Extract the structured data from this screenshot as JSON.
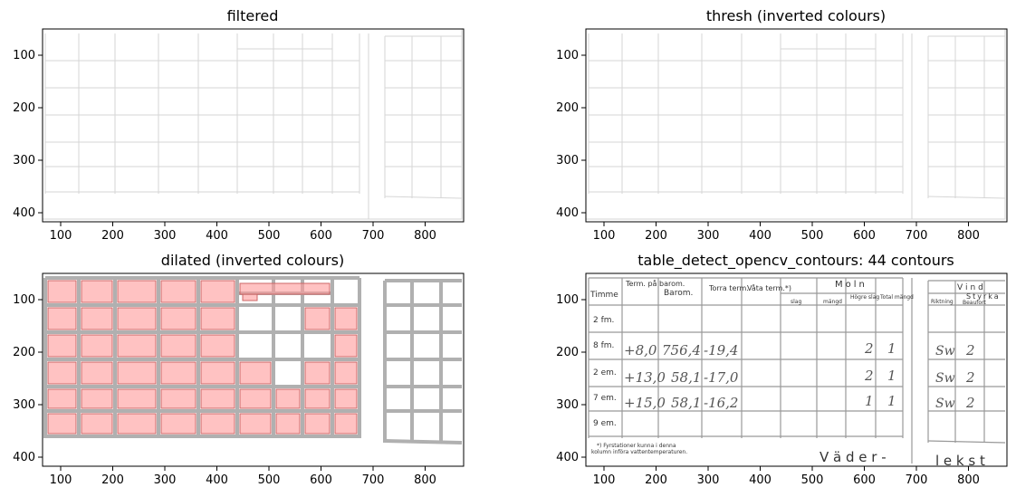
{
  "panels": [
    {
      "id": "filtered",
      "title": "filtered"
    },
    {
      "id": "thresh",
      "title": "thresh (inverted colours)"
    },
    {
      "id": "dilated",
      "title": "dilated (inverted colours)"
    },
    {
      "id": "contours",
      "title": "table_detect_opencv_contours: 44 contours"
    }
  ],
  "axes": {
    "x_ticks": [
      "100",
      "200",
      "300",
      "400",
      "500",
      "600",
      "700",
      "800"
    ],
    "y_ticks": [
      "100",
      "200",
      "300",
      "400"
    ]
  },
  "colors": {
    "contour_fill": "#ff9999",
    "contour_edge": "#cc6666"
  },
  "form": {
    "headers": [
      "Timme",
      "Term.\npå\nbarom.",
      "Barom.",
      "Torra\nterm.",
      "Våta\nterm.*)",
      "Moln",
      "Högre\nslag",
      "Total\nmängd",
      "Vind",
      "Riktning",
      "Styrka",
      "Beaufort"
    ],
    "sub_headers": [
      "slag",
      "mängd"
    ],
    "rows": [
      "2 fm.",
      "8 fm.",
      "2 em.",
      "7 em.",
      "9 em."
    ],
    "footnote_1": "*) Fyrstationer kunna i denna",
    "footnote_2": "kolumn införa vattentemperaturen.",
    "bottom_text_1": "V ä d e r -",
    "bottom_text_2": "l e k s t",
    "handwriting": {
      "row_8fm": [
        "+8,0",
        "756,4",
        "-19,4",
        "2",
        "1",
        "Sw",
        "2"
      ],
      "row_2em": [
        "+13,0",
        "58,1",
        "-17,0",
        "2",
        "1",
        "Sw",
        "2"
      ],
      "row_7em": [
        "+15,0",
        "58,1",
        "-16,2",
        "1",
        "1",
        "Sw",
        "2"
      ]
    }
  }
}
